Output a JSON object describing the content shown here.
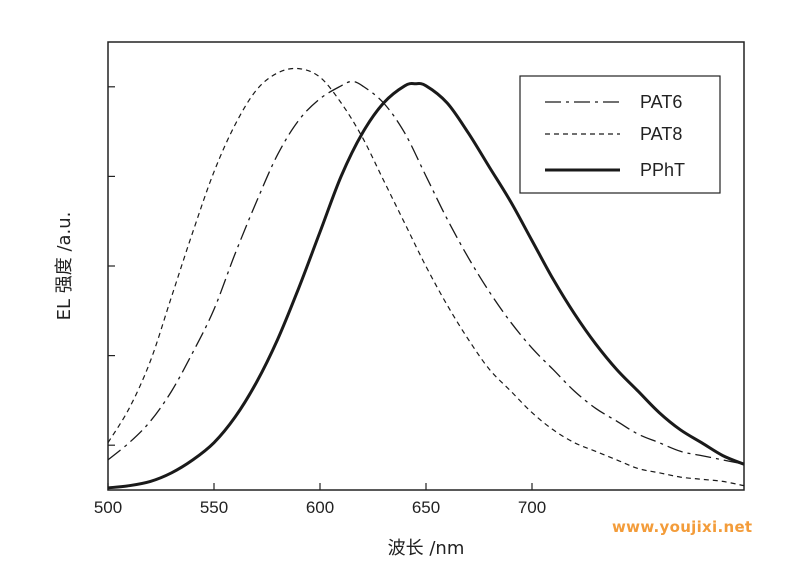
{
  "chart_data": {
    "type": "line",
    "title": "",
    "xlabel": "波长 /nm",
    "ylabel": "EL 强度 /a.u.",
    "xlim": [
      500,
      800
    ],
    "ylim": [
      0,
      1.0
    ],
    "xticks": [
      500,
      550,
      600,
      650,
      700
    ],
    "grid": false,
    "legend_position": "top-right",
    "series": [
      {
        "name": "PAT6",
        "style": "dash-dot",
        "x": [
          500,
          510,
          520,
          530,
          540,
          550,
          560,
          570,
          580,
          590,
          600,
          610,
          615,
          620,
          630,
          640,
          650,
          660,
          670,
          680,
          690,
          700,
          710,
          720,
          730,
          740,
          750,
          760,
          770,
          780,
          790,
          800
        ],
        "y": [
          0.07,
          0.11,
          0.16,
          0.23,
          0.32,
          0.42,
          0.55,
          0.67,
          0.78,
          0.86,
          0.91,
          0.94,
          0.95,
          0.94,
          0.9,
          0.83,
          0.73,
          0.63,
          0.54,
          0.46,
          0.39,
          0.33,
          0.28,
          0.23,
          0.19,
          0.16,
          0.13,
          0.11,
          0.09,
          0.08,
          0.07,
          0.06
        ]
      },
      {
        "name": "PAT8",
        "style": "dashed",
        "x": [
          500,
          510,
          520,
          530,
          540,
          550,
          560,
          570,
          580,
          590,
          600,
          610,
          620,
          630,
          640,
          650,
          660,
          670,
          680,
          690,
          700,
          710,
          720,
          730,
          740,
          750,
          760,
          770,
          780,
          790,
          800
        ],
        "y": [
          0.11,
          0.19,
          0.3,
          0.45,
          0.6,
          0.74,
          0.85,
          0.93,
          0.97,
          0.98,
          0.96,
          0.9,
          0.82,
          0.72,
          0.62,
          0.52,
          0.43,
          0.35,
          0.28,
          0.23,
          0.18,
          0.14,
          0.11,
          0.09,
          0.07,
          0.05,
          0.04,
          0.03,
          0.025,
          0.02,
          0.01
        ]
      },
      {
        "name": "PPhT",
        "style": "solid-thick",
        "x": [
          500,
          510,
          520,
          530,
          540,
          550,
          560,
          570,
          580,
          590,
          600,
          610,
          620,
          630,
          640,
          645,
          650,
          660,
          670,
          680,
          690,
          700,
          710,
          720,
          730,
          740,
          750,
          760,
          770,
          780,
          790,
          800
        ],
        "y": [
          0.005,
          0.01,
          0.02,
          0.04,
          0.07,
          0.11,
          0.17,
          0.25,
          0.35,
          0.47,
          0.6,
          0.73,
          0.83,
          0.9,
          0.94,
          0.945,
          0.94,
          0.9,
          0.83,
          0.75,
          0.67,
          0.58,
          0.49,
          0.41,
          0.34,
          0.28,
          0.23,
          0.18,
          0.14,
          0.11,
          0.08,
          0.06
        ]
      }
    ]
  },
  "watermark": "www.youjixi.net"
}
